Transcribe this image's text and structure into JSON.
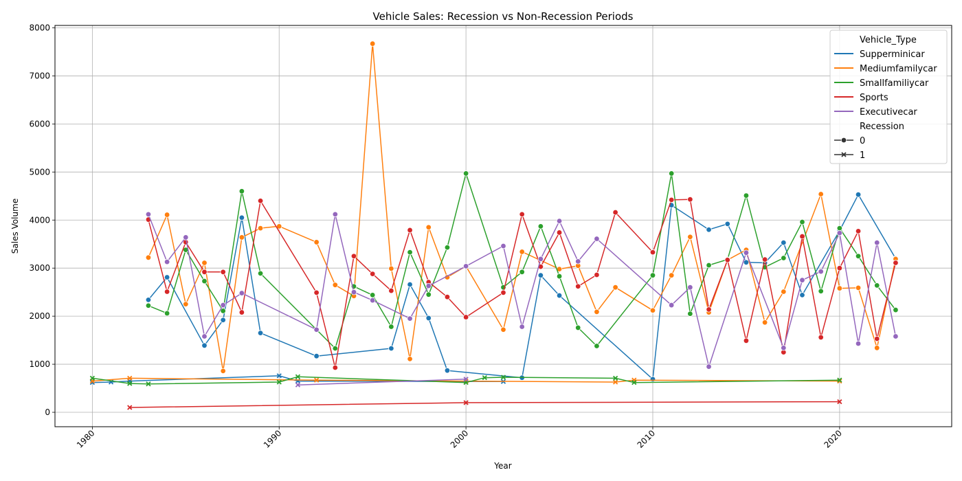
{
  "chart_data": {
    "type": "line",
    "title": "Vehicle Sales: Recession vs Non-Recession Periods",
    "xlabel": "Year",
    "ylabel": "Sales Volume",
    "xlim": [
      1978,
      2026
    ],
    "ylim": [
      -300,
      8050
    ],
    "xticks": [
      1980,
      1990,
      2000,
      2010,
      2020
    ],
    "yticks": [
      0,
      1000,
      2000,
      3000,
      4000,
      5000,
      6000,
      7000,
      8000
    ],
    "grid": true,
    "legend_position": "top-right",
    "hue_title": "Vehicle_Type",
    "style_title": "Recession",
    "style_entries": [
      {
        "label": "0",
        "marker": "circle"
      },
      {
        "label": "1",
        "marker": "x"
      }
    ],
    "series": [
      {
        "name": "Supperminicar",
        "color": "#1f77b4",
        "recession_0": [
          [
            1983,
            2340
          ],
          [
            1984,
            2810
          ],
          [
            1986,
            1390
          ],
          [
            1987,
            1920
          ],
          [
            1988,
            4050
          ],
          [
            1989,
            1650
          ],
          [
            1992,
            1170
          ],
          [
            1996,
            1330
          ],
          [
            1997,
            2660
          ],
          [
            1998,
            1960
          ],
          [
            1999,
            870
          ],
          [
            2003,
            720
          ],
          [
            2004,
            2850
          ],
          [
            2005,
            2430
          ],
          [
            2010,
            690
          ],
          [
            2011,
            4310
          ],
          [
            2013,
            3800
          ],
          [
            2014,
            3920
          ],
          [
            2015,
            3120
          ],
          [
            2016,
            3110
          ],
          [
            2017,
            3530
          ],
          [
            2018,
            2440
          ],
          [
            2020,
            3780
          ],
          [
            2021,
            4530
          ],
          [
            2023,
            3200
          ]
        ],
        "recession_1": [
          [
            1980,
            620
          ],
          [
            1981,
            630
          ],
          [
            1982,
            650
          ],
          [
            1990,
            760
          ],
          [
            1991,
            650
          ],
          [
            2002,
            640
          ]
        ]
      },
      {
        "name": "Mediumfamilycar",
        "color": "#ff7f0e",
        "recession_0": [
          [
            1983,
            3220
          ],
          [
            1984,
            4110
          ],
          [
            1985,
            2250
          ],
          [
            1986,
            3110
          ],
          [
            1987,
            860
          ],
          [
            1988,
            3640
          ],
          [
            1989,
            3830
          ],
          [
            1990,
            3870
          ],
          [
            1992,
            3540
          ],
          [
            1993,
            2650
          ],
          [
            1994,
            2420
          ],
          [
            1995,
            7670
          ],
          [
            1996,
            2990
          ],
          [
            1997,
            1110
          ],
          [
            1998,
            3850
          ],
          [
            1999,
            2810
          ],
          [
            2000,
            3040
          ],
          [
            2002,
            1720
          ],
          [
            2003,
            3340
          ],
          [
            2005,
            2980
          ],
          [
            2006,
            3050
          ],
          [
            2007,
            2090
          ],
          [
            2008,
            2600
          ],
          [
            2010,
            2120
          ],
          [
            2011,
            2850
          ],
          [
            2012,
            3650
          ],
          [
            2013,
            2080
          ],
          [
            2014,
            3170
          ],
          [
            2015,
            3380
          ],
          [
            2016,
            1870
          ],
          [
            2017,
            2510
          ],
          [
            2019,
            4540
          ],
          [
            2020,
            2580
          ],
          [
            2021,
            2590
          ],
          [
            2022,
            1340
          ],
          [
            2023,
            3190
          ]
        ],
        "recession_1": [
          [
            1980,
            650
          ],
          [
            1982,
            710
          ],
          [
            1992,
            670
          ],
          [
            2000,
            650
          ],
          [
            2008,
            630
          ],
          [
            2009,
            670
          ],
          [
            2020,
            650
          ]
        ]
      },
      {
        "name": "Smallfamiliycar",
        "color": "#2ca02c",
        "recession_0": [
          [
            1983,
            2220
          ],
          [
            1984,
            2060
          ],
          [
            1985,
            3380
          ],
          [
            1986,
            2730
          ],
          [
            1987,
            2110
          ],
          [
            1988,
            4600
          ],
          [
            1989,
            2890
          ],
          [
            1993,
            1330
          ],
          [
            1994,
            2620
          ],
          [
            1995,
            2440
          ],
          [
            1996,
            1780
          ],
          [
            1997,
            3330
          ],
          [
            1998,
            2450
          ],
          [
            1999,
            3430
          ],
          [
            2000,
            4970
          ],
          [
            2002,
            2600
          ],
          [
            2003,
            2920
          ],
          [
            2004,
            3870
          ],
          [
            2005,
            2830
          ],
          [
            2006,
            1760
          ],
          [
            2007,
            1380
          ],
          [
            2010,
            2850
          ],
          [
            2011,
            4970
          ],
          [
            2012,
            2050
          ],
          [
            2013,
            3060
          ],
          [
            2014,
            3180
          ],
          [
            2015,
            4510
          ],
          [
            2016,
            3020
          ],
          [
            2017,
            3210
          ],
          [
            2018,
            3960
          ],
          [
            2019,
            2520
          ],
          [
            2020,
            3830
          ],
          [
            2021,
            3250
          ],
          [
            2022,
            2640
          ],
          [
            2023,
            2130
          ]
        ],
        "recession_1": [
          [
            1980,
            710
          ],
          [
            1982,
            600
          ],
          [
            1983,
            590
          ],
          [
            1990,
            630
          ],
          [
            1991,
            740
          ],
          [
            2000,
            620
          ],
          [
            2001,
            720
          ],
          [
            2002,
            730
          ],
          [
            2008,
            710
          ],
          [
            2009,
            620
          ],
          [
            2020,
            670
          ]
        ]
      },
      {
        "name": "Sports",
        "color": "#d62728",
        "recession_0": [
          [
            1983,
            4010
          ],
          [
            1984,
            2510
          ],
          [
            1985,
            3540
          ],
          [
            1986,
            2920
          ],
          [
            1987,
            2920
          ],
          [
            1988,
            2080
          ],
          [
            1989,
            4400
          ],
          [
            1992,
            2490
          ],
          [
            1993,
            930
          ],
          [
            1994,
            3250
          ],
          [
            1995,
            2880
          ],
          [
            1996,
            2530
          ],
          [
            1997,
            3790
          ],
          [
            1998,
            2710
          ],
          [
            1999,
            2400
          ],
          [
            2000,
            1980
          ],
          [
            2002,
            2490
          ],
          [
            2003,
            4120
          ],
          [
            2004,
            3030
          ],
          [
            2005,
            3740
          ],
          [
            2006,
            2620
          ],
          [
            2007,
            2860
          ],
          [
            2008,
            4160
          ],
          [
            2010,
            3330
          ],
          [
            2011,
            4420
          ],
          [
            2012,
            4430
          ],
          [
            2013,
            2140
          ],
          [
            2014,
            3170
          ],
          [
            2015,
            1490
          ],
          [
            2016,
            3180
          ],
          [
            2017,
            1250
          ],
          [
            2018,
            3660
          ],
          [
            2019,
            1560
          ],
          [
            2020,
            3000
          ],
          [
            2021,
            3770
          ],
          [
            2022,
            1530
          ],
          [
            2023,
            3110
          ]
        ],
        "recession_1": [
          [
            1982,
            100
          ],
          [
            2000,
            200
          ],
          [
            2020,
            220
          ]
        ]
      },
      {
        "name": "Executivecar",
        "color": "#9467bd",
        "recession_0": [
          [
            1983,
            4120
          ],
          [
            1984,
            3130
          ],
          [
            1985,
            3640
          ],
          [
            1986,
            1580
          ],
          [
            1987,
            2230
          ],
          [
            1988,
            2480
          ],
          [
            1992,
            1720
          ],
          [
            1993,
            4120
          ],
          [
            1994,
            2500
          ],
          [
            1995,
            2330
          ],
          [
            1997,
            1950
          ],
          [
            1998,
            2630
          ],
          [
            2000,
            3040
          ],
          [
            2002,
            3460
          ],
          [
            2003,
            1780
          ],
          [
            2004,
            3190
          ],
          [
            2005,
            3980
          ],
          [
            2006,
            3140
          ],
          [
            2007,
            3610
          ],
          [
            2011,
            2230
          ],
          [
            2012,
            2600
          ],
          [
            2013,
            950
          ],
          [
            2015,
            3320
          ],
          [
            2017,
            1340
          ],
          [
            2018,
            2750
          ],
          [
            2019,
            2930
          ],
          [
            2020,
            3730
          ],
          [
            2021,
            1430
          ],
          [
            2022,
            3530
          ],
          [
            2023,
            1580
          ]
        ],
        "recession_1": [
          [
            1991,
            570
          ],
          [
            2000,
            690
          ]
        ]
      }
    ]
  }
}
